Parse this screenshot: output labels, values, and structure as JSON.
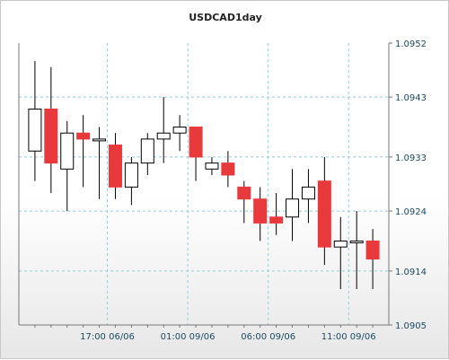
{
  "chart_data": {
    "type": "candlestick",
    "title": "USDCAD1day",
    "ylim": [
      1.0905,
      1.0952
    ],
    "y_ticks": [
      "1.0952",
      "1.0943",
      "1.0933",
      "1.0924",
      "1.0914",
      "1.0905"
    ],
    "x_ticks": [
      {
        "label": "17:00 06/06",
        "index": 4.5
      },
      {
        "label": "01:00 09/06",
        "index": 9.5
      },
      {
        "label": "06:00 09/06",
        "index": 14.5
      },
      {
        "label": "11:00 09/06",
        "index": 19.5
      }
    ],
    "grid": true,
    "colors": {
      "up_fill": "#ffffff",
      "down_fill": "#e8393c",
      "outline": "#000000",
      "grid": "#8fd0d8"
    },
    "candles": [
      {
        "open": 1.0934,
        "high": 1.0949,
        "low": 1.0929,
        "close": 1.0941
      },
      {
        "open": 1.0941,
        "high": 1.0948,
        "low": 1.0927,
        "close": 1.0932
      },
      {
        "open": 1.0931,
        "high": 1.0939,
        "low": 1.0924,
        "close": 1.0937
      },
      {
        "open": 1.0937,
        "high": 1.094,
        "low": 1.0928,
        "close": 1.0936
      },
      {
        "open": 1.0936,
        "high": 1.0938,
        "low": 1.0926,
        "close": 1.0936
      },
      {
        "open": 1.0935,
        "high": 1.0937,
        "low": 1.0926,
        "close": 1.0928
      },
      {
        "open": 1.0928,
        "high": 1.0933,
        "low": 1.0925,
        "close": 1.0932
      },
      {
        "open": 1.0932,
        "high": 1.0937,
        "low": 1.093,
        "close": 1.0936
      },
      {
        "open": 1.0936,
        "high": 1.0943,
        "low": 1.0932,
        "close": 1.0937
      },
      {
        "open": 1.0937,
        "high": 1.094,
        "low": 1.0934,
        "close": 1.0938
      },
      {
        "open": 1.0938,
        "high": 1.0938,
        "low": 1.0929,
        "close": 1.0933
      },
      {
        "open": 1.0931,
        "high": 1.0933,
        "low": 1.093,
        "close": 1.0932
      },
      {
        "open": 1.0932,
        "high": 1.0934,
        "low": 1.0928,
        "close": 1.093
      },
      {
        "open": 1.0928,
        "high": 1.0929,
        "low": 1.0922,
        "close": 1.0926
      },
      {
        "open": 1.0926,
        "high": 1.0928,
        "low": 1.0919,
        "close": 1.0922
      },
      {
        "open": 1.0923,
        "high": 1.0927,
        "low": 1.092,
        "close": 1.0922
      },
      {
        "open": 1.0923,
        "high": 1.0931,
        "low": 1.0919,
        "close": 1.0926
      },
      {
        "open": 1.0926,
        "high": 1.0931,
        "low": 1.0922,
        "close": 1.0928
      },
      {
        "open": 1.0929,
        "high": 1.0933,
        "low": 1.0915,
        "close": 1.0918
      },
      {
        "open": 1.0918,
        "high": 1.0923,
        "low": 1.0911,
        "close": 1.0919
      },
      {
        "open": 1.0919,
        "high": 1.0924,
        "low": 1.0911,
        "close": 1.0919
      },
      {
        "open": 1.0919,
        "high": 1.0921,
        "low": 1.0911,
        "close": 1.0916
      }
    ]
  }
}
